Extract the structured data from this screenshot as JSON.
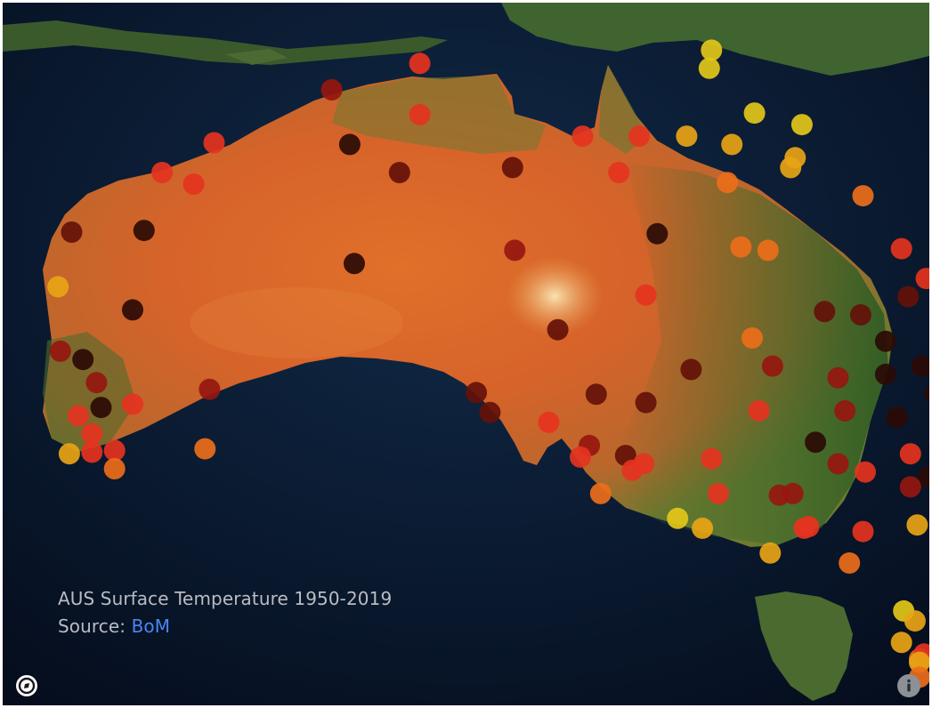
{
  "map": {
    "title": "AUS Surface Temperature 1950-2019",
    "source_prefix": "Source: ",
    "source_link": "BoM",
    "logo_icon": "mapbox-logo-icon",
    "info_icon": "info-icon",
    "basemap": "satellite",
    "colors": {
      "yellow": "#e3c719",
      "amber": "#e8a415",
      "orange": "#ec6e1a",
      "red": "#e5331f",
      "darkred": "#96170f",
      "maroon": "#641109",
      "black": "#2b0b05"
    }
  },
  "stations": [
    {
      "lon": 129.5,
      "lat": -11.4,
      "c": "red"
    },
    {
      "lon": 142.4,
      "lat": -10.6,
      "c": "yellow"
    },
    {
      "lon": 142.3,
      "lat": -11.7,
      "c": "yellow"
    },
    {
      "lon": 125.6,
      "lat": -13.0,
      "c": "darkred"
    },
    {
      "lon": 129.5,
      "lat": -14.5,
      "c": "red"
    },
    {
      "lon": 120.4,
      "lat": -16.2,
      "c": "red"
    },
    {
      "lon": 126.4,
      "lat": -16.3,
      "c": "black"
    },
    {
      "lon": 128.6,
      "lat": -18.0,
      "c": "maroon"
    },
    {
      "lon": 133.6,
      "lat": -17.7,
      "c": "maroon"
    },
    {
      "lon": 136.7,
      "lat": -15.8,
      "c": "red"
    },
    {
      "lon": 138.3,
      "lat": -18.0,
      "c": "red"
    },
    {
      "lon": 139.2,
      "lat": -15.8,
      "c": "red"
    },
    {
      "lon": 141.3,
      "lat": -15.8,
      "c": "amber"
    },
    {
      "lon": 144.3,
      "lat": -14.4,
      "c": "yellow"
    },
    {
      "lon": 146.4,
      "lat": -15.1,
      "c": "yellow"
    },
    {
      "lon": 143.3,
      "lat": -16.3,
      "c": "amber"
    },
    {
      "lon": 146.1,
      "lat": -17.1,
      "c": "amber"
    },
    {
      "lon": 145.9,
      "lat": -17.7,
      "c": "amber"
    },
    {
      "lon": 143.1,
      "lat": -18.6,
      "c": "orange"
    },
    {
      "lon": 149.1,
      "lat": -19.4,
      "c": "orange"
    },
    {
      "lon": 118.1,
      "lat": -18.0,
      "c": "red"
    },
    {
      "lon": 119.5,
      "lat": -18.7,
      "c": "red"
    },
    {
      "lon": 114.1,
      "lat": -21.6,
      "c": "maroon"
    },
    {
      "lon": 117.3,
      "lat": -21.5,
      "c": "black"
    },
    {
      "lon": 126.6,
      "lat": -23.5,
      "c": "black"
    },
    {
      "lon": 133.7,
      "lat": -22.7,
      "c": "darkred"
    },
    {
      "lon": 140.0,
      "lat": -21.7,
      "c": "black"
    },
    {
      "lon": 143.7,
      "lat": -22.5,
      "c": "orange"
    },
    {
      "lon": 144.9,
      "lat": -22.7,
      "c": "orange"
    },
    {
      "lon": 150.8,
      "lat": -22.6,
      "c": "red"
    },
    {
      "lon": 113.5,
      "lat": -24.9,
      "c": "amber"
    },
    {
      "lon": 116.8,
      "lat": -26.3,
      "c": "black"
    },
    {
      "lon": 139.5,
      "lat": -25.4,
      "c": "red"
    },
    {
      "lon": 135.6,
      "lat": -27.5,
      "c": "maroon"
    },
    {
      "lon": 147.4,
      "lat": -26.4,
      "c": "maroon"
    },
    {
      "lon": 151.9,
      "lat": -24.4,
      "c": "red"
    },
    {
      "lon": 151.1,
      "lat": -25.5,
      "c": "maroon"
    },
    {
      "lon": 149.0,
      "lat": -26.6,
      "c": "maroon"
    },
    {
      "lon": 153.3,
      "lat": -26.2,
      "c": "orange"
    },
    {
      "lon": 152.7,
      "lat": -27.0,
      "c": "darkred"
    },
    {
      "lon": 144.2,
      "lat": -28.0,
      "c": "orange"
    },
    {
      "lon": 150.1,
      "lat": -28.2,
      "c": "black"
    },
    {
      "lon": 113.6,
      "lat": -28.8,
      "c": "darkred"
    },
    {
      "lon": 114.6,
      "lat": -29.3,
      "c": "black"
    },
    {
      "lon": 115.2,
      "lat": -30.7,
      "c": "darkred"
    },
    {
      "lon": 115.4,
      "lat": -32.2,
      "c": "black"
    },
    {
      "lon": 114.4,
      "lat": -32.7,
      "c": "red"
    },
    {
      "lon": 116.8,
      "lat": -32.0,
      "c": "red"
    },
    {
      "lon": 115.0,
      "lat": -33.8,
      "c": "red"
    },
    {
      "lon": 120.2,
      "lat": -31.1,
      "c": "darkred"
    },
    {
      "lon": 132.0,
      "lat": -31.3,
      "c": "maroon"
    },
    {
      "lon": 132.6,
      "lat": -32.5,
      "c": "maroon"
    },
    {
      "lon": 137.3,
      "lat": -31.4,
      "c": "maroon"
    },
    {
      "lon": 139.5,
      "lat": -31.9,
      "c": "maroon"
    },
    {
      "lon": 141.5,
      "lat": -29.9,
      "c": "maroon"
    },
    {
      "lon": 145.1,
      "lat": -29.7,
      "c": "darkred"
    },
    {
      "lon": 148.0,
      "lat": -30.4,
      "c": "darkred"
    },
    {
      "lon": 148.3,
      "lat": -32.4,
      "c": "darkred"
    },
    {
      "lon": 150.1,
      "lat": -30.2,
      "c": "black"
    },
    {
      "lon": 151.7,
      "lat": -29.7,
      "c": "black"
    },
    {
      "lon": 152.6,
      "lat": -30.2,
      "c": "black"
    },
    {
      "lon": 153.5,
      "lat": -29.3,
      "c": "red"
    },
    {
      "lon": 153.5,
      "lat": -30.3,
      "c": "red"
    },
    {
      "lon": 153.6,
      "lat": -31.8,
      "c": "darkred"
    },
    {
      "lon": 152.3,
      "lat": -31.4,
      "c": "black"
    },
    {
      "lon": 153.0,
      "lat": -32.3,
      "c": "black"
    },
    {
      "lon": 150.6,
      "lat": -32.8,
      "c": "black"
    },
    {
      "lon": 144.5,
      "lat": -32.4,
      "c": "red"
    },
    {
      "lon": 135.2,
      "lat": -33.1,
      "c": "red"
    },
    {
      "lon": 137.0,
      "lat": -34.5,
      "c": "darkred"
    },
    {
      "lon": 114.0,
      "lat": -35.0,
      "c": "amber"
    },
    {
      "lon": 115.0,
      "lat": -34.9,
      "c": "red"
    },
    {
      "lon": 116.0,
      "lat": -34.8,
      "c": "red"
    },
    {
      "lon": 116.0,
      "lat": -35.9,
      "c": "orange"
    },
    {
      "lon": 120.0,
      "lat": -34.7,
      "c": "orange"
    },
    {
      "lon": 136.6,
      "lat": -35.2,
      "c": "red"
    },
    {
      "lon": 138.6,
      "lat": -35.1,
      "c": "maroon"
    },
    {
      "lon": 138.9,
      "lat": -36.0,
      "c": "red"
    },
    {
      "lon": 139.4,
      "lat": -35.6,
      "c": "red"
    },
    {
      "lon": 137.5,
      "lat": -37.4,
      "c": "orange"
    },
    {
      "lon": 142.4,
      "lat": -35.3,
      "c": "red"
    },
    {
      "lon": 147.0,
      "lat": -34.3,
      "c": "black"
    },
    {
      "lon": 148.0,
      "lat": -35.6,
      "c": "darkred"
    },
    {
      "lon": 149.2,
      "lat": -36.1,
      "c": "red"
    },
    {
      "lon": 151.2,
      "lat": -35.0,
      "c": "red"
    },
    {
      "lon": 152.5,
      "lat": -34.3,
      "c": "red"
    },
    {
      "lon": 153.0,
      "lat": -35.0,
      "c": "red"
    },
    {
      "lon": 153.4,
      "lat": -34.1,
      "c": "orange"
    },
    {
      "lon": 153.0,
      "lat": -35.9,
      "c": "red"
    },
    {
      "lon": 153.4,
      "lat": -35.7,
      "c": "orange"
    },
    {
      "lon": 152.0,
      "lat": -36.4,
      "c": "black"
    },
    {
      "lon": 151.2,
      "lat": -37.0,
      "c": "darkred"
    },
    {
      "lon": 153.2,
      "lat": -37.0,
      "c": "yellow"
    },
    {
      "lon": 142.7,
      "lat": -37.4,
      "c": "red"
    },
    {
      "lon": 145.4,
      "lat": -37.5,
      "c": "darkred"
    },
    {
      "lon": 146.0,
      "lat": -37.4,
      "c": "darkred"
    },
    {
      "lon": 140.9,
      "lat": -38.9,
      "c": "yellow"
    },
    {
      "lon": 142.0,
      "lat": -39.5,
      "c": "amber"
    },
    {
      "lon": 146.5,
      "lat": -39.5,
      "c": "red"
    },
    {
      "lon": 146.7,
      "lat": -39.4,
      "c": "red"
    },
    {
      "lon": 149.1,
      "lat": -39.7,
      "c": "red"
    },
    {
      "lon": 151.5,
      "lat": -39.3,
      "c": "amber"
    },
    {
      "lon": 153.3,
      "lat": -39.1,
      "c": "yellow"
    },
    {
      "lon": 145.0,
      "lat": -41.0,
      "c": "amber"
    },
    {
      "lon": 148.5,
      "lat": -41.6,
      "c": "orange"
    },
    {
      "lon": 150.9,
      "lat": -44.5,
      "c": "yellow"
    },
    {
      "lon": 151.4,
      "lat": -45.1,
      "c": "amber"
    },
    {
      "lon": 152.5,
      "lat": -44.5,
      "c": "amber"
    },
    {
      "lon": 150.8,
      "lat": -46.4,
      "c": "amber"
    },
    {
      "lon": 151.6,
      "lat": -47.4,
      "c": "orange"
    },
    {
      "lon": 151.8,
      "lat": -47.1,
      "c": "red"
    },
    {
      "lon": 151.6,
      "lat": -47.6,
      "c": "amber"
    },
    {
      "lon": 151.6,
      "lat": -48.5,
      "c": "orange"
    }
  ]
}
